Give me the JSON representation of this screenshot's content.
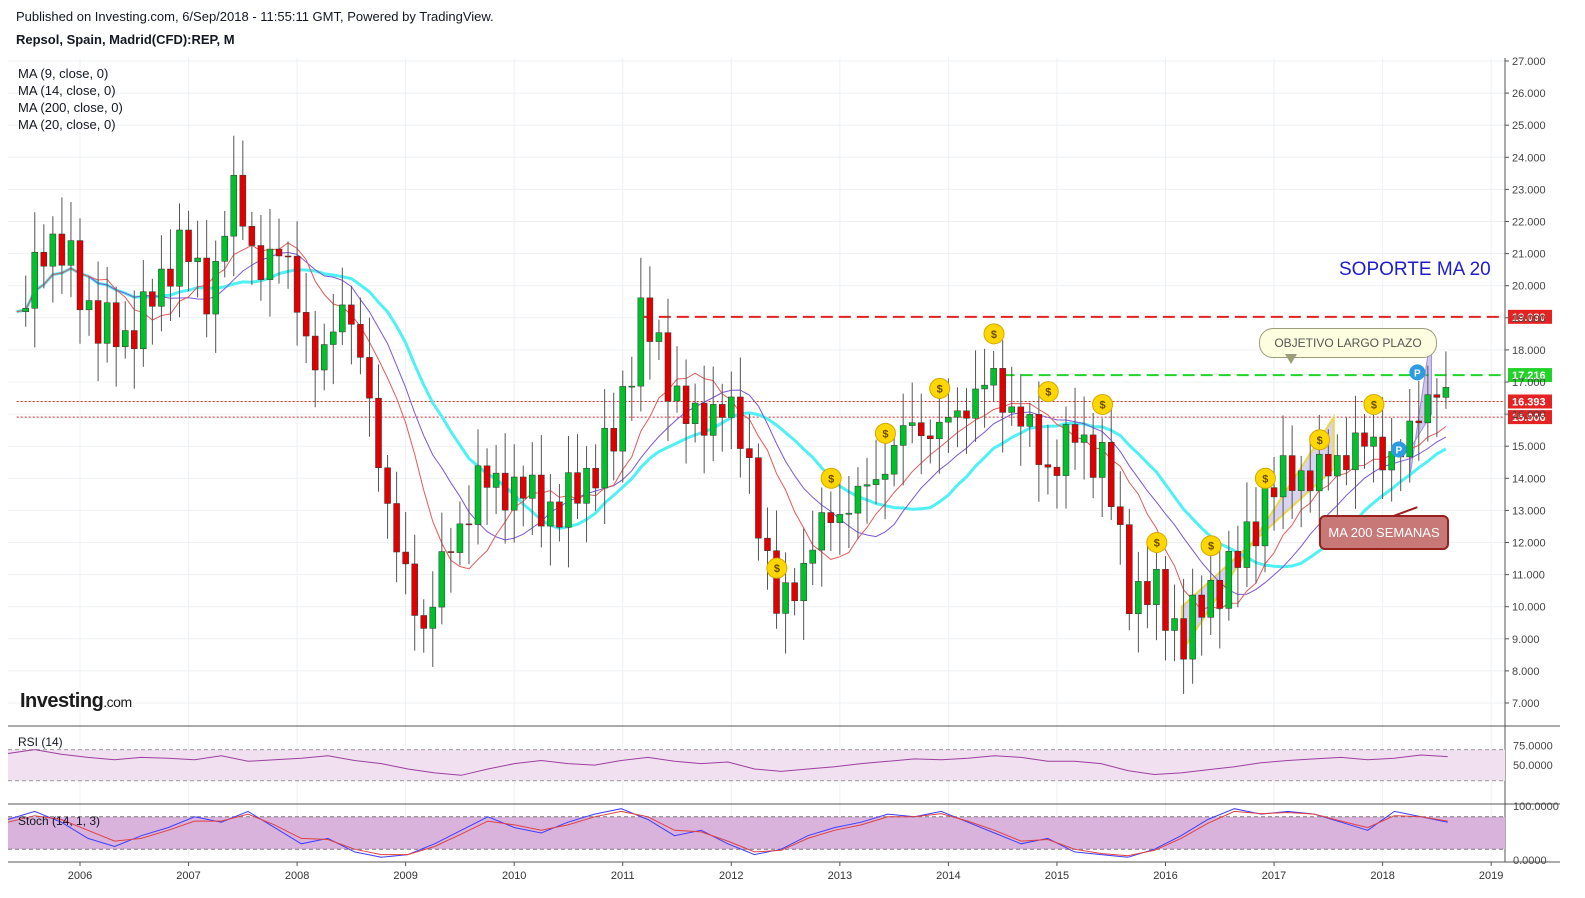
{
  "header": {
    "published": "Published on Investing.com, 6/Sep/2018 - 11:55:11 GMT, Powered by TradingView.",
    "symbol": "Repsol, Spain, Madrid(CFD):REP, M"
  },
  "legend": [
    "MA (9, close, 0)",
    "MA (14, close, 0)",
    "MA (200, close, 0)",
    "MA (20, close, 0)"
  ],
  "logo": {
    "main": "Investing",
    "suffix": ".com"
  },
  "annotations": {
    "soporte": "SOPORTE MA 20",
    "objetivo": "OBJETIVO LARGO PLAZO",
    "ma200": "MA 200 SEMANAS",
    "dollar_icon_text": "$",
    "pivot_icon_text": "P"
  },
  "colors": {
    "up": "#00c02b",
    "down": "#e00000",
    "ma9": "#e55a5a",
    "ma14": "#7b56d9",
    "ma200_cyan": "#4ff1f4",
    "rsi_line": "#9d3fa0",
    "rsi_band": "#f0e0f0",
    "stoch_band": "#d9b3dc",
    "stoch_k": "#3d3dff",
    "stoch_d": "#e04040",
    "resistance": "#e52222",
    "target": "#22d42a",
    "dollar_badge": "#ffd700"
  },
  "chart_data": {
    "type": "candlestick",
    "title": "Repsol, Spain, Madrid(CFD):REP, M",
    "interval": "monthly",
    "x_axis": {
      "labels": [
        "2006",
        "2007",
        "2008",
        "2009",
        "2010",
        "2011",
        "2012",
        "2013",
        "2014",
        "2015",
        "2016",
        "2017",
        "2018",
        "2019"
      ]
    },
    "y_axis": {
      "range": [
        6.5,
        27.2
      ],
      "ticks": [
        "7.000",
        "8.000",
        "9.000",
        "10.000",
        "11.000",
        "12.000",
        "13.000",
        "14.000",
        "15.000",
        "16.000",
        "17.000",
        "18.000",
        "19.000",
        "20.000",
        "21.000",
        "22.000",
        "23.000",
        "24.000",
        "25.000",
        "26.000",
        "27.000"
      ],
      "position": "right"
    },
    "price_levels": [
      {
        "label": "19.030",
        "value": 19.03,
        "style": "dashed",
        "color": "#e52222",
        "from": "2011-03"
      },
      {
        "label": "17.216",
        "value": 17.216,
        "style": "dashed",
        "color": "#22d42a",
        "from": "2014-07"
      },
      {
        "label": "16.393",
        "value": 16.393,
        "style": "dotted",
        "color": "#e52222",
        "from": "2005-06"
      },
      {
        "label": "15.906",
        "value": 15.906,
        "style": "dotted",
        "color": "#e52222",
        "from": "2005-06"
      }
    ],
    "closes_quarterly": [
      {
        "date": "2005-06",
        "close": 18.5
      },
      {
        "date": "2005-09",
        "close": 21.5
      },
      {
        "date": "2005-12",
        "close": 20.6
      },
      {
        "date": "2006-03",
        "close": 18.7
      },
      {
        "date": "2006-06",
        "close": 18.4
      },
      {
        "date": "2006-09",
        "close": 19.5
      },
      {
        "date": "2006-12",
        "close": 21.4
      },
      {
        "date": "2007-03",
        "close": 19.7
      },
      {
        "date": "2007-06",
        "close": 22.8
      },
      {
        "date": "2007-09",
        "close": 20.6
      },
      {
        "date": "2007-12",
        "close": 20.9
      },
      {
        "date": "2008-03",
        "close": 17.1
      },
      {
        "date": "2008-06",
        "close": 19.7
      },
      {
        "date": "2008-09",
        "close": 16.4
      },
      {
        "date": "2008-12",
        "close": 11.6
      },
      {
        "date": "2009-03",
        "close": 9.4
      },
      {
        "date": "2009-06",
        "close": 11.9
      },
      {
        "date": "2009-09",
        "close": 13.8
      },
      {
        "date": "2009-12",
        "close": 13.8
      },
      {
        "date": "2010-03",
        "close": 13.4
      },
      {
        "date": "2010-06",
        "close": 12.9
      },
      {
        "date": "2010-09",
        "close": 14.1
      },
      {
        "date": "2010-12",
        "close": 15.1
      },
      {
        "date": "2011-03",
        "close": 19.1
      },
      {
        "date": "2011-06",
        "close": 17.2
      },
      {
        "date": "2011-09",
        "close": 15.5
      },
      {
        "date": "2011-12",
        "close": 16.5
      },
      {
        "date": "2012-03",
        "close": 14.4
      },
      {
        "date": "2012-06",
        "close": 9.8
      },
      {
        "date": "2012-09",
        "close": 11.3
      },
      {
        "date": "2012-12",
        "close": 12.9
      },
      {
        "date": "2013-03",
        "close": 13.3
      },
      {
        "date": "2013-06",
        "close": 14.5
      },
      {
        "date": "2013-09",
        "close": 15.7
      },
      {
        "date": "2013-12",
        "close": 15.4
      },
      {
        "date": "2014-03",
        "close": 16.4
      },
      {
        "date": "2014-06",
        "close": 17.0
      },
      {
        "date": "2014-09",
        "close": 15.8
      },
      {
        "date": "2014-12",
        "close": 14.3
      },
      {
        "date": "2015-03",
        "close": 15.3
      },
      {
        "date": "2015-06",
        "close": 14.6
      },
      {
        "date": "2015-09",
        "close": 10.6
      },
      {
        "date": "2015-12",
        "close": 10.3
      },
      {
        "date": "2016-03",
        "close": 9.0
      },
      {
        "date": "2016-06",
        "close": 10.5
      },
      {
        "date": "2016-09",
        "close": 11.4
      },
      {
        "date": "2016-12",
        "close": 13.4
      },
      {
        "date": "2017-03",
        "close": 14.2
      },
      {
        "date": "2017-06",
        "close": 14.0
      },
      {
        "date": "2017-09",
        "close": 14.9
      },
      {
        "date": "2017-12",
        "close": 15.0
      },
      {
        "date": "2018-03",
        "close": 14.6
      },
      {
        "date": "2018-06",
        "close": 16.8
      },
      {
        "date": "2018-08",
        "close": 16.4
      }
    ],
    "indicators": [
      {
        "name": "MA (9, close, 0)",
        "color": "#e55a5a"
      },
      {
        "name": "MA (14, close, 0)",
        "color": "#7b56d9"
      },
      {
        "name": "MA (200, close, 0)",
        "color": "#4ff1f4"
      },
      {
        "name": "MA (20, close, 0)",
        "color": "#4ff1f4"
      }
    ],
    "rsi": {
      "label": "RSI (14)",
      "ticks": [
        "75.0000",
        "50.0000"
      ],
      "band": [
        30,
        70
      ],
      "values": [
        65,
        70,
        64,
        60,
        57,
        60,
        59,
        57,
        62,
        55,
        57,
        59,
        62,
        56,
        52,
        45,
        40,
        37,
        45,
        52,
        56,
        52,
        50,
        56,
        60,
        55,
        52,
        54,
        45,
        42,
        45,
        48,
        52,
        55,
        58,
        57,
        59,
        62,
        60,
        55,
        55,
        52,
        43,
        38,
        40,
        44,
        48,
        53,
        56,
        58,
        60,
        57,
        59,
        63,
        61
      ]
    },
    "stochastic": {
      "label": "Stoch (14, 1, 3)",
      "ticks": [
        "100.0000",
        "0.0000"
      ],
      "band": [
        20,
        80
      ],
      "k": [
        75,
        90,
        70,
        40,
        25,
        45,
        60,
        80,
        70,
        90,
        60,
        30,
        40,
        15,
        5,
        10,
        30,
        55,
        80,
        60,
        50,
        70,
        85,
        95,
        75,
        45,
        55,
        30,
        10,
        20,
        45,
        60,
        70,
        85,
        80,
        90,
        70,
        50,
        30,
        40,
        15,
        10,
        5,
        20,
        45,
        75,
        95,
        85,
        90,
        85,
        70,
        55,
        90,
        80,
        70
      ],
      "d": [
        70,
        82,
        75,
        55,
        35,
        40,
        55,
        72,
        72,
        85,
        65,
        40,
        38,
        20,
        10,
        10,
        25,
        48,
        72,
        65,
        55,
        65,
        80,
        90,
        80,
        55,
        52,
        35,
        15,
        18,
        40,
        55,
        65,
        80,
        80,
        86,
        72,
        55,
        35,
        38,
        20,
        12,
        8,
        18,
        40,
        68,
        90,
        86,
        88,
        85,
        72,
        60,
        82,
        80,
        72
      ]
    }
  }
}
